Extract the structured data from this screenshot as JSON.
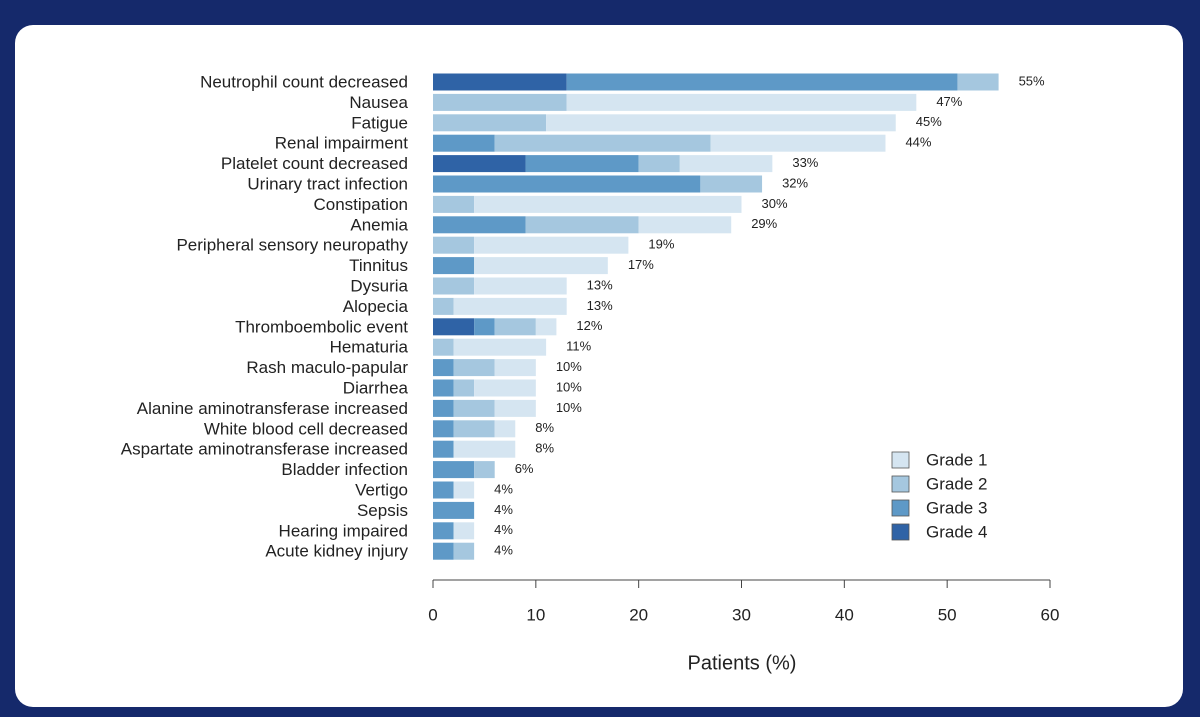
{
  "chart_data": {
    "type": "stacked-barh",
    "xlabel": "Patients (%)",
    "categories": [
      "Neutrophil count decreased",
      "Nausea",
      "Fatigue",
      "Renal impairment",
      "Platelet count decreased",
      "Urinary tract infection",
      "Constipation",
      "Anemia",
      "Peripheral sensory neuropathy",
      "Tinnitus",
      "Dysuria",
      "Alopecia",
      "Thromboembolic event",
      "Hematuria",
      "Rash maculo-papular",
      "Diarrhea",
      "Alanine aminotransferase increased",
      "White blood cell decreased",
      "Aspartate aminotransferase increased",
      "Bladder infection",
      "Vertigo",
      "Sepsis",
      "Hearing impaired",
      "Acute kidney injury"
    ],
    "series": [
      {
        "name": "Grade 1",
        "color": "#d5e5f1",
        "values": [
          0,
          34,
          34,
          17,
          9,
          0,
          26,
          9,
          15,
          13,
          9,
          11,
          2,
          9,
          4,
          6,
          4,
          2,
          6,
          0,
          2,
          0,
          2,
          0
        ]
      },
      {
        "name": "Grade 2",
        "color": "#a5c7df",
        "values": [
          4,
          13,
          11,
          21,
          4,
          6,
          4,
          11,
          4,
          0,
          4,
          2,
          4,
          2,
          4,
          2,
          4,
          4,
          0,
          2,
          0,
          0,
          0,
          2
        ]
      },
      {
        "name": "Grade 3",
        "color": "#5e99c7",
        "values": [
          38,
          0,
          0,
          6,
          11,
          26,
          0,
          9,
          0,
          4,
          0,
          0,
          2,
          0,
          2,
          2,
          2,
          2,
          2,
          4,
          2,
          4,
          2,
          2
        ]
      },
      {
        "name": "Grade 4",
        "color": "#2f63a6",
        "values": [
          13,
          0,
          0,
          0,
          9,
          0,
          0,
          0,
          0,
          0,
          0,
          0,
          4,
          0,
          0,
          0,
          0,
          0,
          0,
          0,
          0,
          0,
          0,
          0
        ]
      }
    ],
    "totals": [
      55,
      47,
      45,
      44,
      33,
      32,
      30,
      29,
      19,
      17,
      13,
      13,
      12,
      11,
      10,
      10,
      10,
      8,
      8,
      6,
      4,
      4,
      4,
      4
    ],
    "total_labels": [
      "55%",
      "47%",
      "45%",
      "44%",
      "33%",
      "32%",
      "30%",
      "29%",
      "19%",
      "17%",
      "13%",
      "13%",
      "12%",
      "11%",
      "10%",
      "10%",
      "10%",
      "8%",
      "8%",
      "6%",
      "4%",
      "4%",
      "4%",
      "4%"
    ],
    "xlim": [
      0,
      60
    ],
    "xticks": [
      0,
      10,
      20,
      30,
      40,
      50,
      60
    ],
    "legend": "lower right",
    "grid": false
  }
}
